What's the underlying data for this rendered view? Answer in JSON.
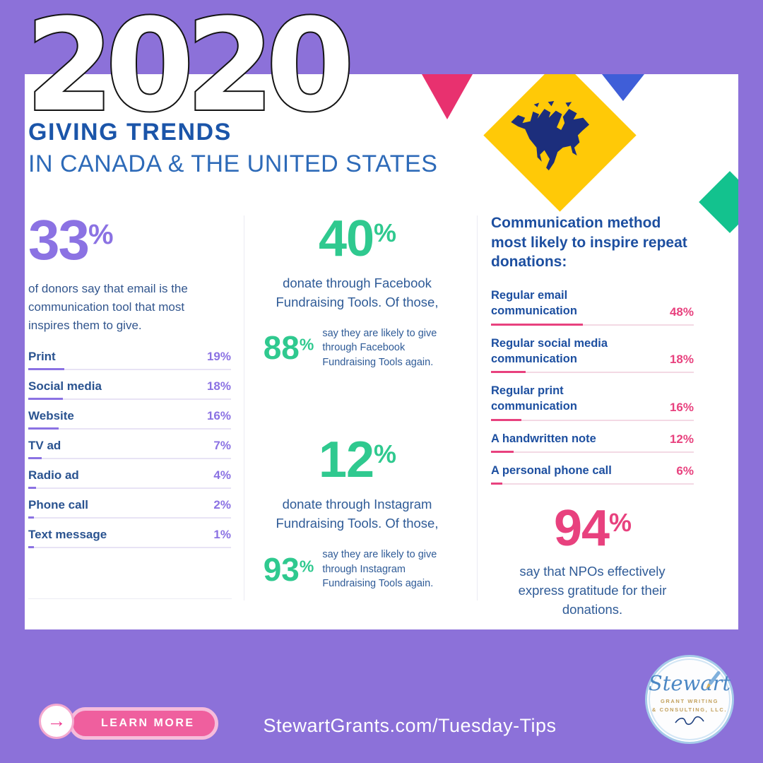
{
  "header": {
    "year": "2020",
    "title": "GIVING TRENDS",
    "subtitle": "IN CANADA & THE UNITED STATES"
  },
  "email_stat": {
    "value": "33",
    "unit": "%",
    "description": "of donors say that email is the communication tool that most inspires them to give.",
    "rows": [
      {
        "label": "Print",
        "value": "19%"
      },
      {
        "label": "Social media",
        "value": "18%"
      },
      {
        "label": "Website",
        "value": "16%"
      },
      {
        "label": "TV ad",
        "value": "7%"
      },
      {
        "label": "Radio ad",
        "value": "4%"
      },
      {
        "label": "Phone call",
        "value": "2%"
      },
      {
        "label": "Text message",
        "value": "1%"
      }
    ]
  },
  "social_fundraising": {
    "facebook": {
      "value": "40",
      "unit": "%",
      "description": "donate through Facebook Fundraising Tools. Of those,",
      "again_value": "88",
      "again_unit": "%",
      "again_text": "say they are likely to give through Facebook Fundraising Tools again."
    },
    "instagram": {
      "value": "12",
      "unit": "%",
      "description": "donate through Instagram Fundraising Tools. Of those,",
      "again_value": "93",
      "again_unit": "%",
      "again_text": "say they are likely to give through Instagram Fundraising Tools again."
    }
  },
  "repeat_donations": {
    "heading": "Communication method most likely to inspire repeat donations:",
    "rows": [
      {
        "label": "Regular email communication",
        "value": "48%"
      },
      {
        "label": "Regular social media communication",
        "value": "18%"
      },
      {
        "label": "Regular print communication",
        "value": "16%"
      },
      {
        "label": "A handwritten note",
        "value": "12%"
      },
      {
        "label": "A personal phone call",
        "value": "6%"
      }
    ],
    "gratitude_value": "94",
    "gratitude_unit": "%",
    "gratitude_text": "say that NPOs effectively express gratitude for their donations."
  },
  "footer": {
    "button_label": "LEARN MORE",
    "arrow_glyph": "→",
    "url": "StewartGrants.com/Tuesday-Tips"
  },
  "logo": {
    "name": "Stewart",
    "tagline_line1": "GRANT WRITING",
    "tagline_line2": "& CONSULTING, LLC."
  },
  "colors": {
    "background": "#8c71d9",
    "purple_accent": "#8b72e3",
    "green_accent": "#2fc98f",
    "pink_accent": "#e8417e",
    "blue_heading": "#1b55a9",
    "body_blue": "#2f5b97",
    "yellow": "#ffc907"
  },
  "chart_data": [
    {
      "type": "bar",
      "title": "33% of donors say that email is the communication tool that most inspires them to give",
      "categories": [
        "Print",
        "Social media",
        "Website",
        "TV ad",
        "Radio ad",
        "Phone call",
        "Text message"
      ],
      "values": [
        19,
        18,
        16,
        7,
        4,
        2,
        1
      ],
      "unit": "%",
      "xlabel": "",
      "ylabel": "",
      "legend": false
    },
    {
      "type": "bar",
      "title": "Communication method most likely to inspire repeat donations",
      "categories": [
        "Regular email communication",
        "Regular social media communication",
        "Regular print communication",
        "A handwritten note",
        "A personal phone call"
      ],
      "values": [
        48,
        18,
        16,
        12,
        6
      ],
      "unit": "%",
      "xlabel": "",
      "ylabel": "",
      "legend": false
    },
    {
      "type": "table",
      "title": "Social fundraising statistics",
      "stats": [
        {
          "value": 40,
          "unit": "%",
          "label": "donate through Facebook Fundraising Tools"
        },
        {
          "value": 88,
          "unit": "%",
          "label": "say they are likely to give through Facebook Fundraising Tools again"
        },
        {
          "value": 12,
          "unit": "%",
          "label": "donate through Instagram Fundraising Tools"
        },
        {
          "value": 93,
          "unit": "%",
          "label": "say they are likely to give through Instagram Fundraising Tools again"
        },
        {
          "value": 94,
          "unit": "%",
          "label": "say that NPOs effectively express gratitude for their donations"
        }
      ]
    }
  ]
}
